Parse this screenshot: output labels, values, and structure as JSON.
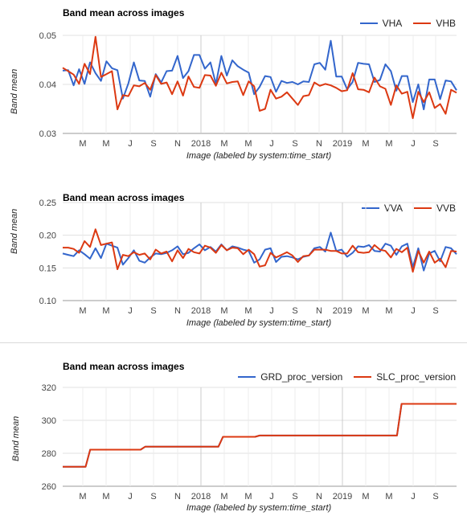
{
  "chart_data": [
    {
      "type": "line",
      "title": "Band mean across images",
      "ylabel": "Band mean",
      "xlabel": "Image (labeled by system:time_start)",
      "ylim": [
        0.03,
        0.05
      ],
      "yticks": [
        "0.03",
        "0.04",
        "0.05"
      ],
      "ytick_values": [
        0.03,
        0.04,
        0.05
      ],
      "xticks": [
        "M",
        "M",
        "J",
        "S",
        "N",
        "2018",
        "M",
        "M",
        "J",
        "S",
        "N",
        "2019",
        "M",
        "M",
        "J",
        "S"
      ],
      "legend_position": "top-right",
      "series": [
        {
          "name": "VHA",
          "color": "#3366cc",
          "values": [
            0.0428,
            0.0429,
            0.0398,
            0.0431,
            0.0401,
            0.0445,
            0.0423,
            0.0407,
            0.0447,
            0.0433,
            0.0429,
            0.0371,
            0.0402,
            0.0445,
            0.0408,
            0.0407,
            0.0375,
            0.0421,
            0.0404,
            0.0427,
            0.0428,
            0.0458,
            0.0413,
            0.0427,
            0.046,
            0.046,
            0.0432,
            0.0445,
            0.0401,
            0.0458,
            0.0418,
            0.0449,
            0.0437,
            0.043,
            0.0424,
            0.038,
            0.0395,
            0.0417,
            0.0415,
            0.0385,
            0.0407,
            0.0403,
            0.0405,
            0.04,
            0.0406,
            0.0405,
            0.0441,
            0.0444,
            0.043,
            0.0489,
            0.0416,
            0.0416,
            0.039,
            0.0405,
            0.0444,
            0.0442,
            0.0441,
            0.0405,
            0.0409,
            0.0441,
            0.0427,
            0.0387,
            0.0417,
            0.0417,
            0.0364,
            0.04,
            0.0349,
            0.041,
            0.041,
            0.037,
            0.0408,
            0.0406,
            0.0388
          ]
        },
        {
          "name": "VHB",
          "color": "#dc3912",
          "values": [
            0.0434,
            0.0427,
            0.042,
            0.0401,
            0.0442,
            0.0421,
            0.0497,
            0.0415,
            0.0421,
            0.0427,
            0.0349,
            0.0378,
            0.0376,
            0.0398,
            0.0396,
            0.0403,
            0.0389,
            0.0419,
            0.0401,
            0.0404,
            0.038,
            0.0406,
            0.0377,
            0.0416,
            0.0395,
            0.0393,
            0.0419,
            0.0418,
            0.0397,
            0.0424,
            0.0402,
            0.0405,
            0.0406,
            0.0378,
            0.0406,
            0.0396,
            0.0346,
            0.035,
            0.0389,
            0.0371,
            0.0375,
            0.0384,
            0.0371,
            0.0358,
            0.0376,
            0.0378,
            0.0404,
            0.0397,
            0.0401,
            0.0398,
            0.0393,
            0.0386,
            0.0388,
            0.0423,
            0.039,
            0.0389,
            0.0384,
            0.0414,
            0.0396,
            0.0391,
            0.0358,
            0.0398,
            0.0381,
            0.0385,
            0.0331,
            0.0385,
            0.0364,
            0.0384,
            0.0352,
            0.036,
            0.034,
            0.0389,
            0.0383
          ]
        }
      ]
    },
    {
      "type": "line",
      "title": "Band mean across images",
      "ylabel": "Band mean",
      "xlabel": "Image (labeled by system:time_start)",
      "ylim": [
        0.1,
        0.25
      ],
      "yticks": [
        "0.10",
        "0.15",
        "0.20",
        "0.25"
      ],
      "ytick_values": [
        0.1,
        0.15,
        0.2,
        0.25
      ],
      "xticks": [
        "M",
        "M",
        "J",
        "S",
        "N",
        "2018",
        "M",
        "M",
        "J",
        "S",
        "N",
        "2019",
        "M",
        "M",
        "J",
        "S"
      ],
      "legend_position": "top-right",
      "series": [
        {
          "name": "VVA",
          "color": "#3366cc",
          "values": [
            0.172,
            0.17,
            0.168,
            0.177,
            0.171,
            0.164,
            0.18,
            0.165,
            0.187,
            0.184,
            0.181,
            0.155,
            0.165,
            0.177,
            0.161,
            0.158,
            0.166,
            0.172,
            0.171,
            0.173,
            0.177,
            0.183,
            0.171,
            0.173,
            0.18,
            0.186,
            0.177,
            0.182,
            0.175,
            0.186,
            0.177,
            0.183,
            0.181,
            0.178,
            0.176,
            0.158,
            0.163,
            0.178,
            0.18,
            0.159,
            0.167,
            0.168,
            0.166,
            0.163,
            0.167,
            0.169,
            0.18,
            0.182,
            0.175,
            0.204,
            0.176,
            0.178,
            0.167,
            0.173,
            0.183,
            0.182,
            0.185,
            0.176,
            0.175,
            0.187,
            0.184,
            0.17,
            0.183,
            0.187,
            0.151,
            0.18,
            0.146,
            0.172,
            0.176,
            0.16,
            0.182,
            0.18,
            0.171
          ]
        },
        {
          "name": "VVB",
          "color": "#dc3912",
          "values": [
            0.181,
            0.181,
            0.179,
            0.173,
            0.191,
            0.182,
            0.209,
            0.185,
            0.187,
            0.189,
            0.148,
            0.17,
            0.168,
            0.174,
            0.17,
            0.172,
            0.163,
            0.178,
            0.172,
            0.175,
            0.16,
            0.177,
            0.165,
            0.179,
            0.174,
            0.172,
            0.184,
            0.181,
            0.173,
            0.185,
            0.177,
            0.181,
            0.18,
            0.171,
            0.178,
            0.171,
            0.152,
            0.154,
            0.173,
            0.166,
            0.17,
            0.174,
            0.169,
            0.159,
            0.168,
            0.169,
            0.178,
            0.178,
            0.178,
            0.176,
            0.176,
            0.172,
            0.172,
            0.184,
            0.174,
            0.173,
            0.174,
            0.185,
            0.178,
            0.176,
            0.166,
            0.179,
            0.174,
            0.181,
            0.144,
            0.176,
            0.158,
            0.175,
            0.158,
            0.164,
            0.151,
            0.176,
            0.175
          ]
        }
      ]
    },
    {
      "type": "line",
      "title": "Band mean across images",
      "ylabel": "Band mean",
      "xlabel": "Image (labeled by system:time_start)",
      "ylim": [
        260,
        320
      ],
      "yticks": [
        "260",
        "280",
        "300",
        "320"
      ],
      "ytick_values": [
        260,
        280,
        300,
        320
      ],
      "xticks": [
        "M",
        "M",
        "J",
        "S",
        "N",
        "2018",
        "M",
        "M",
        "J",
        "S",
        "N",
        "2019",
        "M",
        "M",
        "J",
        "S"
      ],
      "legend_position": "top-right",
      "series": [
        {
          "name": "GRD_proc_version",
          "color": "#3366cc",
          "values": [
            271.8,
            271.8,
            271.8,
            271.8,
            271.8,
            271.8,
            282.2,
            282.2,
            282.2,
            282.2,
            282.2,
            282.2,
            282.2,
            282.2,
            282.2,
            282.2,
            282.2,
            282.2,
            284.0,
            284.0,
            284.0,
            284.0,
            284.0,
            284.0,
            284.0,
            284.0,
            284.0,
            284.0,
            284.0,
            284.0,
            284.0,
            284.0,
            284.0,
            284.0,
            284.0,
            290.0,
            290.0,
            290.0,
            290.0,
            290.0,
            290.0,
            290.0,
            290.0,
            290.8,
            290.8,
            290.8,
            290.8,
            290.8,
            290.8,
            290.8,
            290.8,
            290.8,
            290.8,
            290.8,
            290.8,
            290.8,
            290.8,
            290.8,
            290.8,
            290.8,
            290.8,
            290.8,
            290.8,
            290.8,
            290.8,
            290.8,
            290.8,
            290.8,
            290.8,
            290.8,
            290.8,
            290.8,
            290.8,
            290.8,
            310.0,
            310.0,
            310.0,
            310.0,
            310.0,
            310.0,
            310.0,
            310.0,
            310.0,
            310.0,
            310.0,
            310.0,
            310.0
          ]
        },
        {
          "name": "SLC_proc_version",
          "color": "#dc3912",
          "values": [
            271.8,
            271.8,
            271.8,
            271.8,
            271.8,
            271.8,
            282.2,
            282.2,
            282.2,
            282.2,
            282.2,
            282.2,
            282.2,
            282.2,
            282.2,
            282.2,
            282.2,
            282.2,
            284.0,
            284.0,
            284.0,
            284.0,
            284.0,
            284.0,
            284.0,
            284.0,
            284.0,
            284.0,
            284.0,
            284.0,
            284.0,
            284.0,
            284.0,
            284.0,
            284.0,
            290.0,
            290.0,
            290.0,
            290.0,
            290.0,
            290.0,
            290.0,
            290.0,
            290.8,
            290.8,
            290.8,
            290.8,
            290.8,
            290.8,
            290.8,
            290.8,
            290.8,
            290.8,
            290.8,
            290.8,
            290.8,
            290.8,
            290.8,
            290.8,
            290.8,
            290.8,
            290.8,
            290.8,
            290.8,
            290.8,
            290.8,
            290.8,
            290.8,
            290.8,
            290.8,
            290.8,
            290.8,
            290.8,
            290.8,
            310.0,
            310.0,
            310.0,
            310.0,
            310.0,
            310.0,
            310.0,
            310.0,
            310.0,
            310.0,
            310.0,
            310.0,
            310.0
          ]
        }
      ]
    }
  ]
}
